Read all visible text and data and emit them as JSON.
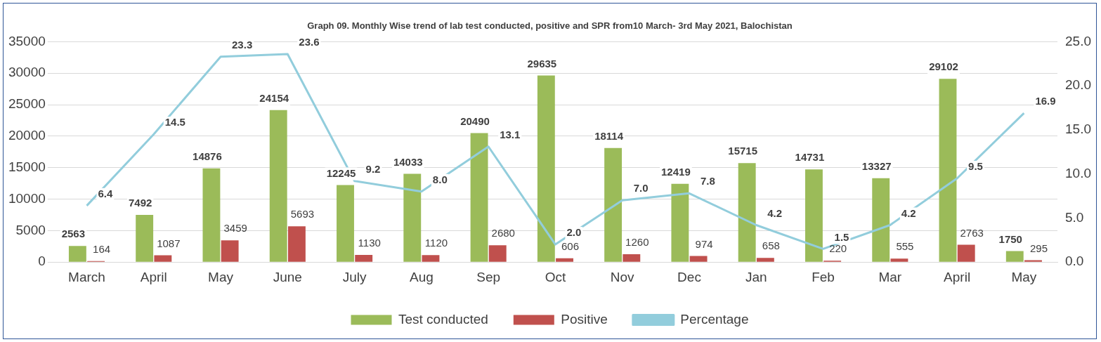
{
  "chart_data": {
    "type": "bar",
    "title": "Graph 09. Monthly Wise trend of lab test conducted, positive and SPR from10  March- 3rd May 2021, Balochistan",
    "categories": [
      "March",
      "April",
      "May",
      "June",
      "July",
      "Aug",
      "Sep",
      "Oct",
      "Nov",
      "Dec",
      "Jan",
      "Feb",
      "Mar",
      "April",
      "May"
    ],
    "series": [
      {
        "name": "Test conducted",
        "color": "#9bbb59",
        "values": [
          2563,
          7492,
          14876,
          24154,
          12245,
          14033,
          20490,
          29635,
          18114,
          12419,
          15715,
          14731,
          13327,
          29102,
          1750
        ],
        "value_labels": [
          "2563",
          "7492",
          "14876",
          "24154",
          "12245",
          "14033",
          "20490",
          "29635",
          "18114",
          "12419",
          "15715",
          "14731",
          "13327",
          "29102",
          "1750"
        ]
      },
      {
        "name": "Positive",
        "color": "#c0504d",
        "values": [
          164,
          1087,
          3459,
          5693,
          1130,
          1120,
          2680,
          606,
          1260,
          974,
          658,
          220,
          555,
          2763,
          295
        ],
        "value_labels": [
          "164",
          "1087",
          "3459",
          "5693",
          "1130",
          "1120",
          "2680",
          "606",
          "1260",
          "974",
          "658",
          "220",
          "555",
          "2763",
          "295"
        ]
      },
      {
        "name": "Percentage",
        "type": "line",
        "axis": "y2",
        "color": "#92cddc",
        "values": [
          6.4,
          14.5,
          23.3,
          23.6,
          9.2,
          8.0,
          13.1,
          2.0,
          7.0,
          7.8,
          4.2,
          1.5,
          4.2,
          9.5,
          16.9
        ],
        "value_labels": [
          "6.4",
          "14.5",
          "23.3",
          "23.6",
          "9.2",
          "8.0",
          "13.1",
          "2.0",
          "7.0",
          "7.8",
          "4.2",
          "1.5",
          "4.2",
          "9.5",
          "16.9"
        ]
      }
    ],
    "ylim": [
      0,
      35000
    ],
    "yticks": [
      0,
      5000,
      10000,
      15000,
      20000,
      25000,
      30000,
      35000
    ],
    "y2lim": [
      0,
      25
    ],
    "y2ticks": [
      {
        "value": 0,
        "label": "0.0"
      },
      {
        "value": 5,
        "label": "5.0"
      },
      {
        "value": 10,
        "label": "10.0"
      },
      {
        "value": 15,
        "label": "15.0"
      },
      {
        "value": 20,
        "label": "20.0"
      },
      {
        "value": 25,
        "label": "25.0"
      }
    ],
    "grid": "y",
    "legend": "bottom",
    "marker": "none",
    "line_style": "solid"
  }
}
